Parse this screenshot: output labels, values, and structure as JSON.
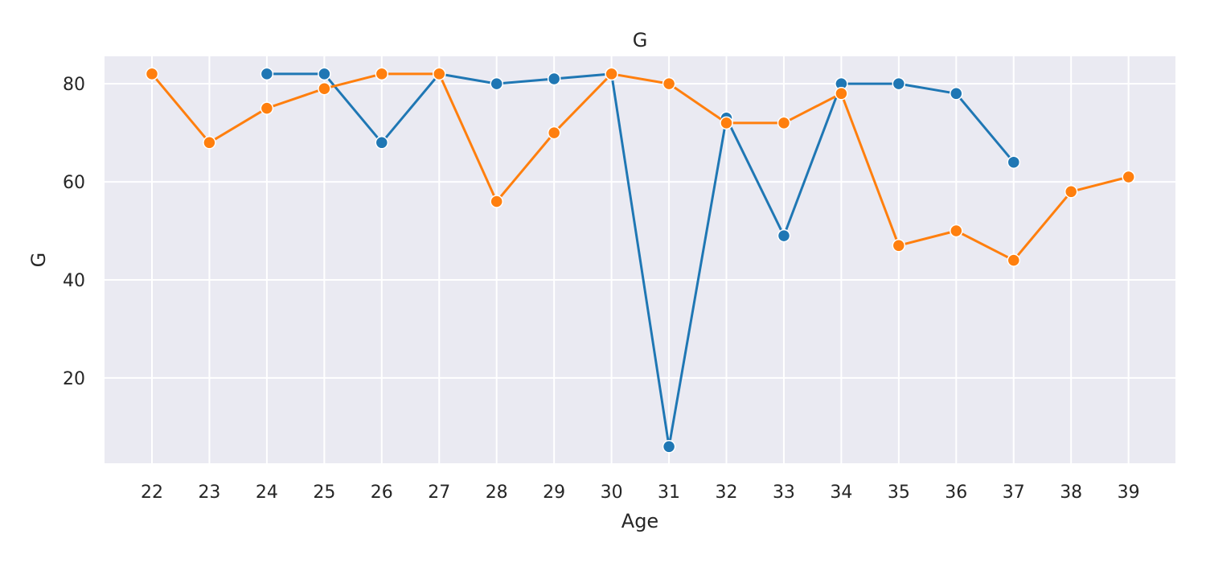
{
  "chart_data": {
    "type": "line",
    "title": "G",
    "xlabel": "Age",
    "ylabel": "G",
    "x": [
      22,
      23,
      24,
      25,
      26,
      27,
      28,
      29,
      30,
      31,
      32,
      33,
      34,
      35,
      36,
      37,
      38,
      39
    ],
    "xticks": [
      "22",
      "23",
      "24",
      "25",
      "26",
      "27",
      "28",
      "29",
      "30",
      "31",
      "32",
      "33",
      "34",
      "35",
      "36",
      "37",
      "38",
      "39"
    ],
    "yticks": [
      "20",
      "40",
      "60",
      "80"
    ],
    "ylim": [
      2.6,
      85.6
    ],
    "grid": true,
    "background": "#eaeaf2",
    "series": [
      {
        "color": "#1f77b4",
        "values": [
          null,
          null,
          82,
          82,
          68,
          82,
          80,
          81,
          82,
          6,
          73,
          49,
          80,
          80,
          78,
          64,
          null,
          null
        ]
      },
      {
        "color": "#ff7f0e",
        "values": [
          82,
          68,
          75,
          79,
          82,
          82,
          56,
          70,
          82,
          80,
          72,
          72,
          78,
          47,
          50,
          44,
          58,
          61
        ]
      }
    ]
  }
}
